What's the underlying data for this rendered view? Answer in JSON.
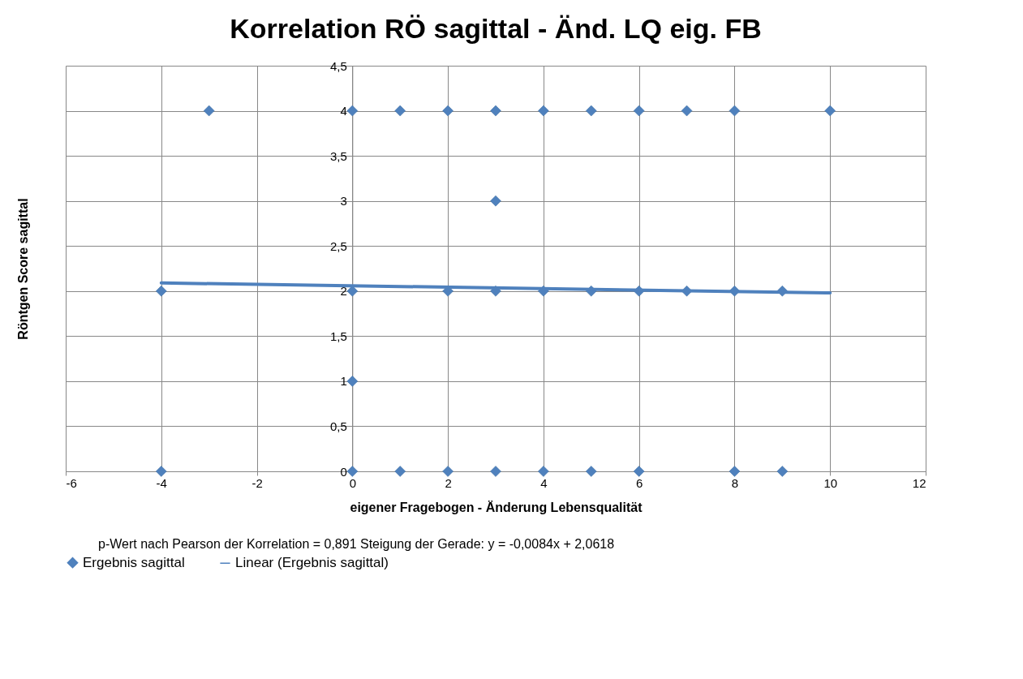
{
  "chart_data": {
    "type": "scatter",
    "title": "Korrelation RÖ sagittal - Änd. LQ eig. FB",
    "xlabel": "eigener Fragebogen - Änderung Lebensqualität",
    "ylabel": "Röntgen Score sagittal",
    "annotations": [
      "p-Wert nach Pearson der Korrelation = 0,891  Steigung der Gerade:       y = -0,0084x + 2,0618"
    ],
    "xlim": [
      -6,
      12
    ],
    "xticks": [
      -6,
      -4,
      -2,
      0,
      2,
      4,
      6,
      8,
      10,
      12
    ],
    "ylim": [
      0,
      4.5
    ],
    "yticks": [
      0,
      {
        "value": 0.5,
        "label": "0,5"
      },
      1,
      {
        "value": 1.5,
        "label": "1,5"
      },
      2,
      {
        "value": 2.5,
        "label": "2,5"
      },
      3,
      {
        "value": 3.5,
        "label": "3,5"
      },
      4,
      {
        "value": 4.5,
        "label": "4,5"
      }
    ],
    "grid": true,
    "legend": "bottom",
    "series": [
      {
        "name": "Ergebnis sagittal",
        "type": "scatter",
        "marker": "diamond",
        "color": "#4f81bd",
        "x": [
          -3,
          0,
          1,
          2,
          3,
          4,
          5,
          6,
          7,
          8,
          10,
          3,
          -4,
          0,
          2,
          3,
          4,
          5,
          6,
          7,
          8,
          9,
          0,
          -4,
          0,
          1,
          2,
          3,
          4,
          5,
          6,
          8,
          9
        ],
        "values": [
          4,
          4,
          4,
          4,
          4,
          4,
          4,
          4,
          4,
          4,
          4,
          3,
          2,
          2,
          2,
          2,
          2,
          2,
          2,
          2,
          2,
          2,
          1,
          0,
          0,
          0,
          0,
          0,
          0,
          0,
          0,
          0,
          0
        ]
      },
      {
        "name": "Linear (Ergebnis sagittal)",
        "type": "line",
        "color": "#4f81bd",
        "x": [
          -4,
          10
        ],
        "values": [
          2.09,
          1.98
        ]
      }
    ]
  }
}
